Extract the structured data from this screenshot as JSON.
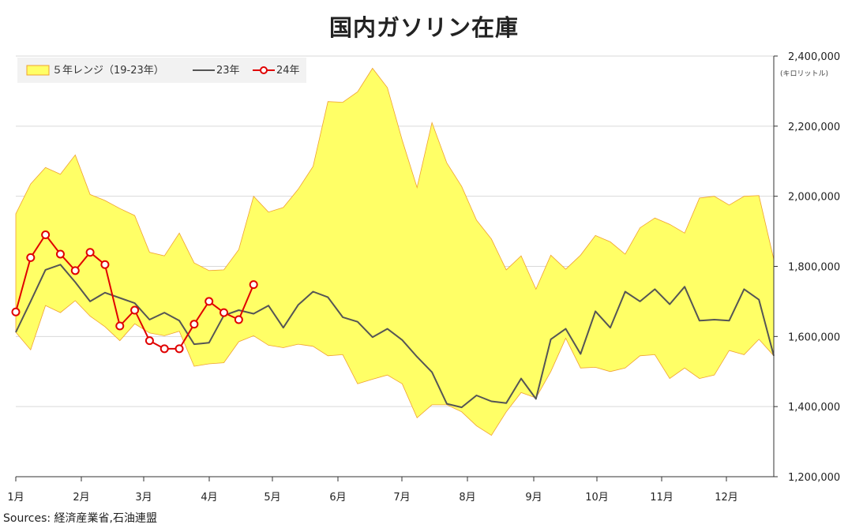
{
  "chart_data": {
    "type": "line",
    "title": "国内ガソリン在庫",
    "unit_label": "(キロリットル)",
    "source": "Sources: 経済産業省,石油連盟",
    "x_labels": [
      "1月",
      "2月",
      "3月",
      "4月",
      "5月",
      "6月",
      "7月",
      "8月",
      "9月",
      "10月",
      "11月",
      "12月"
    ],
    "ylim": [
      1200000,
      2400000
    ],
    "y_ticks": [
      1200000,
      1400000,
      1600000,
      1800000,
      2000000,
      2200000,
      2400000
    ],
    "y_tick_labels": [
      "1,200,000",
      "1,400,000",
      "1,600,000",
      "1,800,000",
      "2,000,000",
      "2,200,000",
      "2,400,000"
    ],
    "weeks": 52,
    "range_band": {
      "name": "５年レンジ（19-23年）",
      "color": "#FFFF66",
      "edge_color": "#F0A030",
      "upper": [
        1950000,
        2035000,
        2082000,
        2063000,
        2118000,
        2005000,
        1988000,
        1965000,
        1945000,
        1840000,
        1830000,
        1895000,
        1810000,
        1788000,
        1790000,
        1848000,
        2000000,
        1955000,
        1968000,
        2020000,
        2085000,
        2270000,
        2268000,
        2298000,
        2365000,
        2310000,
        2160000,
        2025000,
        2210000,
        2095000,
        2028000,
        1932000,
        1878000,
        1790000,
        1830000,
        1735000,
        1832000,
        1792000,
        1832000,
        1888000,
        1870000,
        1835000,
        1910000,
        1938000,
        1920000,
        1895000,
        1995000,
        2000000,
        1975000,
        2000000,
        2002000,
        1820000
      ],
      "lower": [
        1612000,
        1562000,
        1688000,
        1668000,
        1702000,
        1658000,
        1628000,
        1588000,
        1636000,
        1610000,
        1602000,
        1615000,
        1515000,
        1522000,
        1525000,
        1585000,
        1602000,
        1575000,
        1568000,
        1578000,
        1572000,
        1545000,
        1548000,
        1465000,
        1478000,
        1490000,
        1465000,
        1368000,
        1405000,
        1405000,
        1385000,
        1345000,
        1318000,
        1385000,
        1440000,
        1425000,
        1500000,
        1595000,
        1510000,
        1512000,
        1500000,
        1510000,
        1545000,
        1548000,
        1480000,
        1510000,
        1480000,
        1490000,
        1560000,
        1548000,
        1592000,
        1545000
      ]
    },
    "series": [
      {
        "name": "23年",
        "color": "#555555",
        "values": [
          1612000,
          1700000,
          1790000,
          1805000,
          1755000,
          1700000,
          1725000,
          1710000,
          1695000,
          1648000,
          1668000,
          1645000,
          1578000,
          1582000,
          1660000,
          1675000,
          1665000,
          1688000,
          1625000,
          1690000,
          1728000,
          1712000,
          1655000,
          1642000,
          1598000,
          1622000,
          1590000,
          1542000,
          1498000,
          1408000,
          1398000,
          1432000,
          1415000,
          1410000,
          1480000,
          1422000,
          1592000,
          1622000,
          1550000,
          1672000,
          1625000,
          1728000,
          1700000,
          1735000,
          1692000,
          1742000,
          1645000,
          1648000,
          1645000,
          1735000,
          1705000,
          1545000
        ]
      },
      {
        "name": "24年",
        "color": "#E00000",
        "values": [
          1670000,
          1825000,
          1890000,
          1835000,
          1788000,
          1840000,
          1805000,
          1630000,
          1675000,
          1588000,
          1565000,
          1565000,
          1635000,
          1700000,
          1668000,
          1648000,
          1748000
        ]
      }
    ],
    "legend_position": "top-left",
    "grid": "horizontal"
  }
}
